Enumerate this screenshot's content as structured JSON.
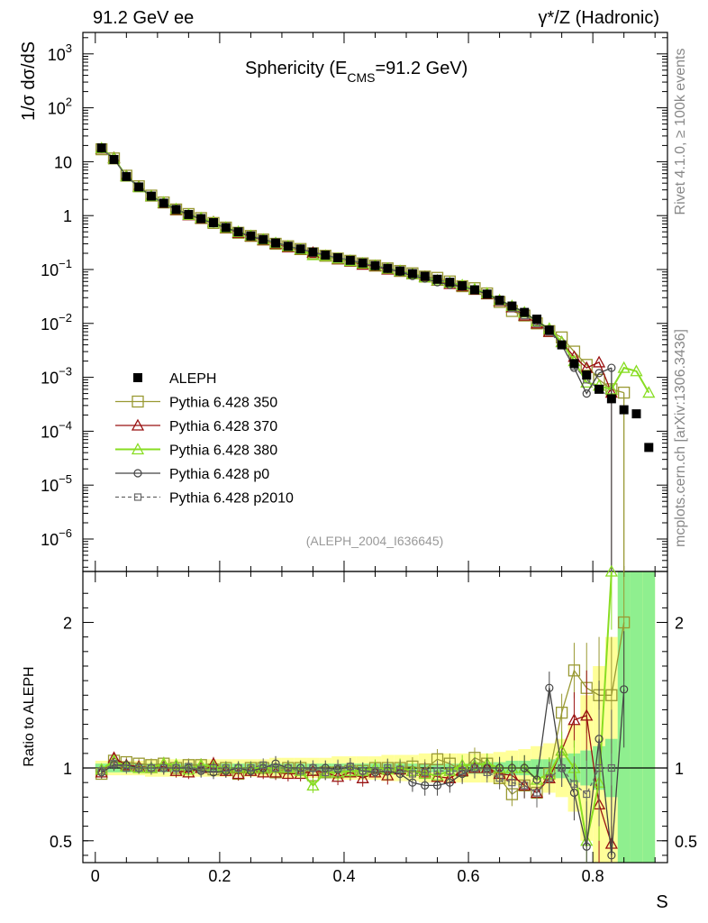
{
  "header": {
    "left_label": "91.2 GeV ee",
    "right_label": "γ*/Z (Hadronic)"
  },
  "side_labels": {
    "rivet": "Rivet 4.1.0, ≥ 100k events",
    "mcplots": "mcplots.cern.ch [arXiv:1306.3436]"
  },
  "chart_data": [
    {
      "panel": "main",
      "type": "line",
      "title": "Sphericity (E_CMS=91.2 GeV)",
      "title_parts": {
        "main": "Sphericity (E",
        "sub": "CMS",
        "rest": "=91.2 GeV)"
      },
      "analysis_label": "(ALEPH_2004_I636645)",
      "xlabel": "S",
      "ylabel": "1/σ  dσ/dS",
      "yscale": "log",
      "xlim": [
        -0.02,
        0.92
      ],
      "ylim": [
        2.5e-07,
        2500
      ],
      "yticks": [
        {
          "v": 1e-06,
          "b": "10",
          "e": "−6"
        },
        {
          "v": 1e-05,
          "b": "10",
          "e": "−5"
        },
        {
          "v": 0.0001,
          "b": "10",
          "e": "−4"
        },
        {
          "v": 0.001,
          "b": "10",
          "e": "−3"
        },
        {
          "v": 0.01,
          "b": "10",
          "e": "−2"
        },
        {
          "v": 0.1,
          "b": "10",
          "e": "−1"
        },
        {
          "v": 1,
          "b": "1",
          "e": ""
        },
        {
          "v": 10,
          "b": "10",
          "e": ""
        },
        {
          "v": 100,
          "b": "10",
          "e": "2"
        },
        {
          "v": 1000,
          "b": "10",
          "e": "3"
        }
      ],
      "legend": [
        {
          "label": "ALEPH",
          "color": "#000000",
          "marker": "square-filled",
          "dash": ""
        },
        {
          "label": "Pythia 6.428 350",
          "color": "#999933",
          "marker": "square-open",
          "dash": ""
        },
        {
          "label": "Pythia 6.428 370",
          "color": "#991111",
          "marker": "triangle-open",
          "dash": ""
        },
        {
          "label": "Pythia 6.428 380",
          "color": "#88dd22",
          "marker": "triangle-open",
          "dash": ""
        },
        {
          "label": "Pythia 6.428 p0",
          "color": "#444444",
          "marker": "circle-open",
          "dash": ""
        },
        {
          "label": "Pythia 6.428 p2010",
          "color": "#666666",
          "marker": "square-small",
          "dash": "4,3"
        }
      ],
      "x": [
        0.01,
        0.03,
        0.05,
        0.07,
        0.09,
        0.11,
        0.13,
        0.15,
        0.17,
        0.19,
        0.21,
        0.23,
        0.25,
        0.27,
        0.29,
        0.31,
        0.33,
        0.35,
        0.37,
        0.39,
        0.41,
        0.43,
        0.45,
        0.47,
        0.49,
        0.51,
        0.53,
        0.55,
        0.57,
        0.59,
        0.61,
        0.63,
        0.65,
        0.67,
        0.69,
        0.71,
        0.73,
        0.75,
        0.77,
        0.79,
        0.81,
        0.83,
        0.85,
        0.87,
        0.89
      ],
      "series": [
        {
          "name": "ALEPH",
          "values": [
            18,
            11,
            5.3,
            3.4,
            2.3,
            1.7,
            1.3,
            1.05,
            0.88,
            0.74,
            0.6,
            0.5,
            0.42,
            0.36,
            0.31,
            0.27,
            0.24,
            0.21,
            0.185,
            0.165,
            0.148,
            0.132,
            0.118,
            0.105,
            0.094,
            0.084,
            0.075,
            0.066,
            0.058,
            0.05,
            0.042,
            0.035,
            0.027,
            0.021,
            0.016,
            0.012,
            0.0075,
            0.004,
            0.0018,
            0.0011,
            0.0006,
            0.0004,
            0.00025,
            0.00021,
            5e-05
          ]
        },
        {
          "name": "Pythia 6.428 350",
          "values": [
            17,
            11.5,
            5.5,
            3.5,
            2.35,
            1.75,
            1.3,
            1.07,
            0.9,
            0.73,
            0.6,
            0.48,
            0.42,
            0.36,
            0.3,
            0.27,
            0.24,
            0.2,
            0.18,
            0.16,
            0.145,
            0.13,
            0.118,
            0.105,
            0.094,
            0.085,
            0.074,
            0.07,
            0.06,
            0.049,
            0.045,
            0.036,
            0.025,
            0.017,
            0.014,
            0.01,
            0.0072,
            0.0055,
            0.003,
            0.0017,
            0.0009,
            0.0006,
            0.00052,
            null,
            null
          ]
        },
        {
          "name": "Pythia 6.428 370",
          "values": [
            17.5,
            11.8,
            5.4,
            3.45,
            2.3,
            1.72,
            1.28,
            1.02,
            0.88,
            0.76,
            0.59,
            0.48,
            0.41,
            0.35,
            0.3,
            0.26,
            0.23,
            0.205,
            0.18,
            0.155,
            0.143,
            0.123,
            0.115,
            0.1,
            0.093,
            0.082,
            0.073,
            0.062,
            0.054,
            0.049,
            0.042,
            0.035,
            0.026,
            0.02,
            0.014,
            0.01,
            0.007,
            0.0045,
            0.0024,
            0.0015,
            0.0019,
            0.00052,
            null,
            null,
            null
          ]
        },
        {
          "name": "Pythia 6.428 380",
          "values": [
            17.8,
            11.6,
            5.35,
            3.4,
            2.3,
            1.75,
            1.32,
            1.04,
            0.9,
            0.75,
            0.6,
            0.5,
            0.42,
            0.36,
            0.31,
            0.27,
            0.235,
            0.185,
            0.18,
            0.16,
            0.145,
            0.13,
            0.118,
            0.104,
            0.094,
            0.082,
            0.072,
            0.063,
            0.057,
            0.051,
            0.043,
            0.036,
            0.027,
            0.021,
            0.016,
            0.011,
            0.008,
            0.0045,
            0.002,
            0.0008,
            0.0007,
            0.0006,
            0.0015,
            0.0013,
            0.00052
          ]
        },
        {
          "name": "Pythia 6.428 p0",
          "values": [
            17.5,
            11.2,
            5.4,
            3.4,
            2.3,
            1.7,
            1.3,
            1.05,
            0.86,
            0.72,
            0.59,
            0.5,
            0.41,
            0.36,
            0.32,
            0.27,
            0.24,
            0.21,
            0.185,
            0.163,
            0.15,
            0.13,
            0.115,
            0.103,
            0.09,
            0.076,
            0.068,
            0.058,
            0.052,
            0.048,
            0.042,
            0.035,
            0.027,
            0.021,
            0.016,
            0.011,
            0.0078,
            0.004,
            0.0015,
            0.0005,
            0.0012,
            0.0015,
            null,
            null,
            null
          ]
        },
        {
          "name": "Pythia 6.428 p2010",
          "values": [
            17.6,
            11.3,
            5.3,
            3.4,
            2.3,
            1.7,
            1.3,
            1.06,
            0.87,
            0.74,
            0.6,
            0.5,
            0.42,
            0.37,
            0.31,
            0.27,
            0.235,
            0.21,
            0.18,
            0.165,
            0.15,
            0.13,
            0.116,
            0.105,
            0.093,
            0.081,
            0.073,
            0.065,
            0.057,
            0.049,
            0.042,
            0.034,
            0.025,
            0.019,
            0.014,
            0.01,
            0.007,
            0.004,
            0.0016,
            0.0009,
            0.0006,
            0.0004,
            null,
            null,
            null
          ]
        }
      ]
    },
    {
      "panel": "ratio",
      "type": "line",
      "ylabel": "Ratio to ALEPH",
      "xlabel": "S",
      "xlim": [
        -0.02,
        0.92
      ],
      "ylim": [
        0.35,
        2.35
      ],
      "yticks": [
        0.5,
        1,
        2
      ],
      "xticks": [
        0,
        0.2,
        0.4,
        0.6,
        0.8
      ],
      "reference_line": 1,
      "band_inner_half_width": [
        0.03,
        0.03,
        0.03,
        0.03,
        0.03,
        0.03,
        0.03,
        0.03,
        0.03,
        0.03,
        0.03,
        0.03,
        0.03,
        0.03,
        0.03,
        0.03,
        0.03,
        0.03,
        0.03,
        0.03,
        0.03,
        0.03,
        0.03,
        0.03,
        0.03,
        0.03,
        0.03,
        0.03,
        0.03,
        0.03,
        0.04,
        0.04,
        0.04,
        0.05,
        0.05,
        0.06,
        0.06,
        0.07,
        0.1,
        0.12,
        0.15,
        0.2,
        1.4,
        1.4,
        1.4
      ],
      "band_outer_half_width": [
        0.05,
        0.05,
        0.05,
        0.05,
        0.06,
        0.06,
        0.06,
        0.06,
        0.06,
        0.06,
        0.06,
        0.06,
        0.06,
        0.06,
        0.07,
        0.07,
        0.07,
        0.07,
        0.07,
        0.08,
        0.08,
        0.08,
        0.08,
        0.09,
        0.09,
        0.09,
        0.1,
        0.1,
        0.1,
        0.1,
        0.1,
        0.1,
        0.11,
        0.12,
        0.13,
        0.15,
        0.17,
        0.2,
        0.3,
        0.5,
        0.7,
        0.9,
        1.4,
        1.4,
        1.4
      ],
      "series": [
        {
          "name": "Pythia 6.428 350",
          "values": [
            0.96,
            1.05,
            1.04,
            1.03,
            1.02,
            1.03,
            1.0,
            1.02,
            1.02,
            0.99,
            1.0,
            0.96,
            1.0,
            1.0,
            0.97,
            1.0,
            1.0,
            0.95,
            0.97,
            0.97,
            0.98,
            0.98,
            1.0,
            1.0,
            1.0,
            1.01,
            0.99,
            1.06,
            1.03,
            0.98,
            1.07,
            1.03,
            0.93,
            0.82,
            0.88,
            0.83,
            0.96,
            1.38,
            1.67,
            1.55,
            1.5,
            1.5,
            2.0,
            null,
            null
          ]
        },
        {
          "name": "Pythia 6.428 370",
          "values": [
            0.97,
            1.07,
            1.02,
            1.01,
            1.0,
            1.01,
            0.98,
            0.97,
            1.0,
            1.03,
            0.98,
            0.96,
            0.98,
            0.97,
            0.97,
            0.96,
            0.96,
            0.98,
            0.97,
            0.94,
            0.97,
            0.93,
            0.97,
            0.95,
            0.99,
            0.98,
            0.97,
            0.94,
            0.93,
            0.98,
            1.0,
            1.0,
            0.96,
            0.95,
            0.88,
            0.83,
            0.93,
            1.12,
            1.33,
            1.36,
            0.75,
            0.48,
            null,
            null,
            null
          ]
        },
        {
          "name": "Pythia 6.428 380",
          "values": [
            0.99,
            1.05,
            1.01,
            1.0,
            1.0,
            1.03,
            1.02,
            0.99,
            1.02,
            1.01,
            1.0,
            1.0,
            1.0,
            1.0,
            1.0,
            1.0,
            0.98,
            0.88,
            0.97,
            0.97,
            0.98,
            0.98,
            1.0,
            0.99,
            1.0,
            0.98,
            0.96,
            0.95,
            0.98,
            1.02,
            1.02,
            1.03,
            1.0,
            1.0,
            1.0,
            0.92,
            0.96,
            1.12,
            1.0,
            0.5,
            0.9,
            2.35,
            null,
            null,
            null
          ]
        },
        {
          "name": "Pythia 6.428 p0",
          "values": [
            0.97,
            1.02,
            1.02,
            1.0,
            1.0,
            1.0,
            1.0,
            1.0,
            0.98,
            0.97,
            0.98,
            1.0,
            0.98,
            1.0,
            1.03,
            1.0,
            1.0,
            1.0,
            1.0,
            0.99,
            1.01,
            0.98,
            0.97,
            0.98,
            0.96,
            0.9,
            0.88,
            0.88,
            0.9,
            0.96,
            1.0,
            1.0,
            1.0,
            1.0,
            1.0,
            0.92,
            1.55,
            1.0,
            0.83,
            0.46,
            1.2,
            0.4,
            1.54,
            null,
            null
          ]
        },
        {
          "name": "Pythia 6.428 p2010",
          "values": [
            0.98,
            1.03,
            1.0,
            1.0,
            1.0,
            1.0,
            1.0,
            1.01,
            0.99,
            1.0,
            1.0,
            1.0,
            1.0,
            1.02,
            1.0,
            1.0,
            0.98,
            1.0,
            0.97,
            1.0,
            1.01,
            0.98,
            0.98,
            1.0,
            0.99,
            0.96,
            0.97,
            0.98,
            0.98,
            0.98,
            1.0,
            0.97,
            0.93,
            0.9,
            0.88,
            0.83,
            0.93,
            1.0,
            0.89,
            0.82,
            1.0,
            1.0,
            null,
            null,
            null
          ]
        }
      ]
    }
  ]
}
